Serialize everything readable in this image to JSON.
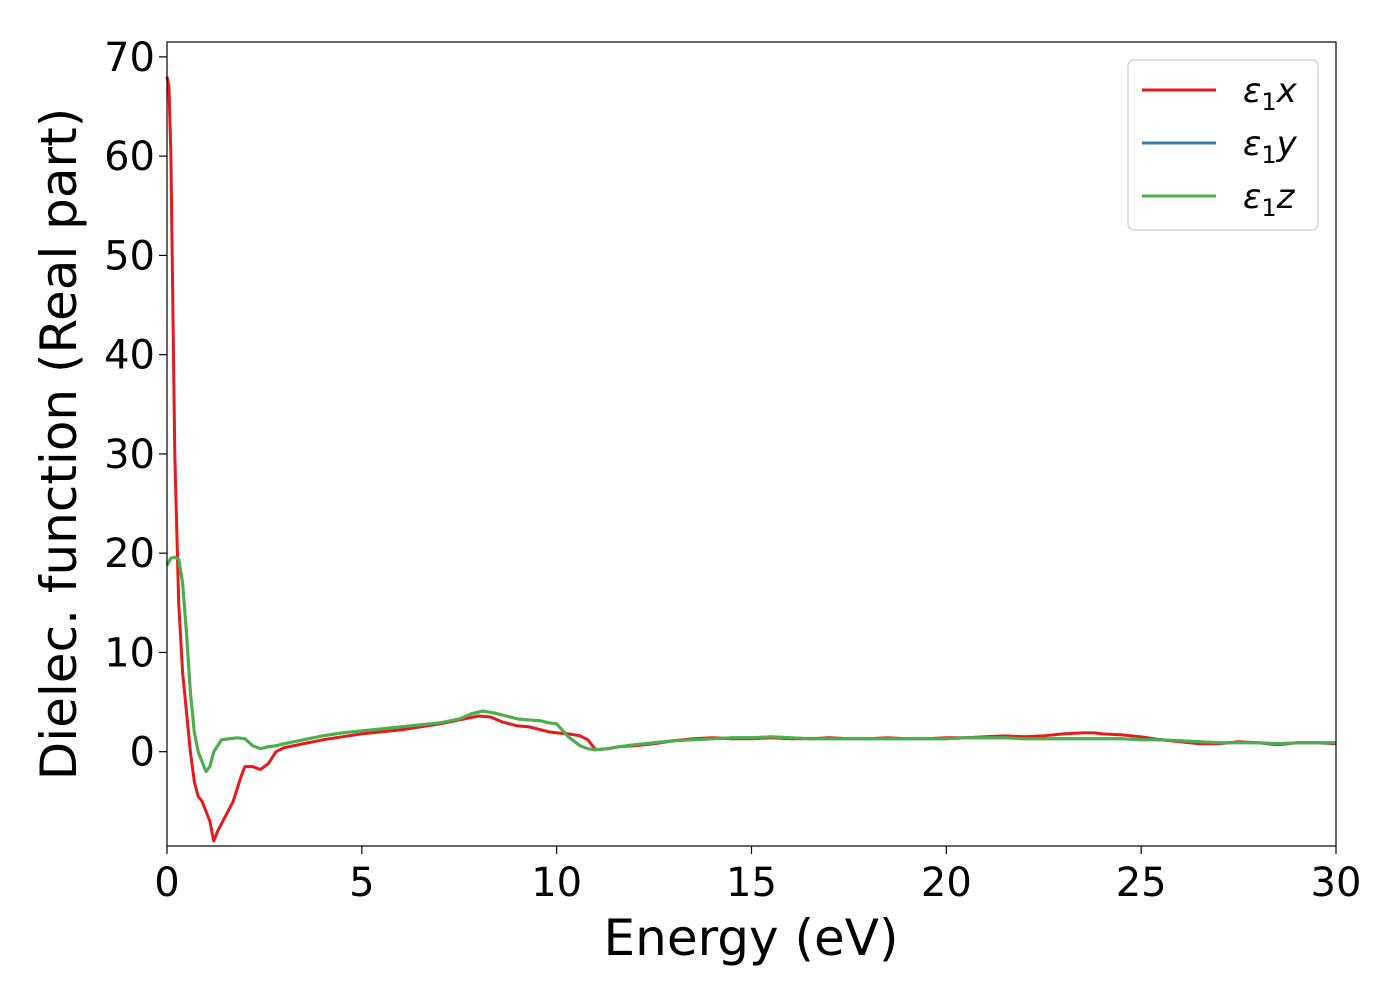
{
  "chart_data": {
    "type": "line",
    "title": "",
    "xlabel": "Energy (eV)",
    "ylabel": "Dielec. function (Real part)",
    "xlim": [
      0,
      30
    ],
    "ylim": [
      -9.5,
      71.5
    ],
    "xticks": [
      0,
      5,
      10,
      15,
      20,
      25,
      30
    ],
    "yticks": [
      0,
      10,
      20,
      30,
      40,
      50,
      60,
      70
    ],
    "grid": false,
    "legend_position": "top-right",
    "series": [
      {
        "name": "ε₁x",
        "legend_base": "ε",
        "legend_sub": "1",
        "legend_suffix": "x",
        "color": "#e41a1c",
        "x": [
          0,
          0.05,
          0.1,
          0.15,
          0.2,
          0.3,
          0.4,
          0.5,
          0.6,
          0.7,
          0.8,
          0.9,
          1.0,
          1.1,
          1.2,
          1.3,
          1.5,
          1.7,
          1.9,
          2.0,
          2.2,
          2.4,
          2.6,
          2.8,
          3.0,
          3.5,
          4.0,
          4.5,
          5.0,
          5.5,
          6.0,
          6.5,
          7.0,
          7.5,
          8.0,
          8.3,
          8.6,
          9.0,
          9.3,
          9.6,
          9.8,
          10.0,
          10.3,
          10.6,
          10.8,
          11.0,
          11.3,
          11.6,
          12.0,
          12.5,
          13.0,
          13.5,
          14.0,
          14.5,
          15.0,
          15.5,
          16.0,
          16.5,
          17.0,
          17.5,
          18.0,
          18.5,
          19.0,
          19.5,
          20.0,
          20.5,
          21.0,
          21.5,
          22.0,
          22.5,
          23.0,
          23.5,
          23.8,
          24.0,
          24.5,
          25.0,
          25.5,
          26.0,
          26.5,
          27.0,
          27.5,
          28.0,
          28.5,
          29.0,
          29.5,
          30.0
        ],
        "y": [
          68,
          67,
          60,
          45,
          30,
          15,
          8,
          4,
          0,
          -3,
          -4.5,
          -5,
          -6,
          -7,
          -9,
          -8,
          -6.5,
          -5,
          -2.5,
          -1.5,
          -1.5,
          -1.8,
          -1.2,
          0,
          0.4,
          0.8,
          1.2,
          1.5,
          1.8,
          2,
          2.2,
          2.5,
          2.8,
          3.2,
          3.6,
          3.5,
          3.0,
          2.6,
          2.5,
          2.2,
          2.0,
          1.9,
          1.8,
          1.6,
          1.2,
          0.2,
          0.3,
          0.5,
          0.6,
          0.8,
          1.1,
          1.3,
          1.4,
          1.3,
          1.3,
          1.4,
          1.3,
          1.3,
          1.4,
          1.3,
          1.3,
          1.4,
          1.3,
          1.3,
          1.4,
          1.4,
          1.5,
          1.6,
          1.5,
          1.6,
          1.8,
          1.9,
          1.9,
          1.8,
          1.7,
          1.5,
          1.2,
          1.0,
          0.8,
          0.8,
          1.0,
          0.9,
          0.7,
          0.9,
          0.9,
          0.8
        ]
      },
      {
        "name": "ε₁y",
        "legend_base": "ε",
        "legend_sub": "1",
        "legend_suffix": "y",
        "color": "#377eb8",
        "x": [
          0,
          0.1,
          0.2,
          0.3,
          0.4,
          0.5,
          0.6,
          0.7,
          0.8,
          0.9,
          1.0,
          1.1,
          1.2,
          1.4,
          1.6,
          1.8,
          2.0,
          2.2,
          2.4,
          2.6,
          2.8,
          3.0,
          3.5,
          4.0,
          4.5,
          5.0,
          5.5,
          6.0,
          6.5,
          7.0,
          7.5,
          7.8,
          8.1,
          8.4,
          8.7,
          9.0,
          9.3,
          9.6,
          9.8,
          10.0,
          10.3,
          10.6,
          10.8,
          11.0,
          11.3,
          11.6,
          12.0,
          12.5,
          13.0,
          13.5,
          14.0,
          14.5,
          15.0,
          15.5,
          16.0,
          16.5,
          17.0,
          17.5,
          18.0,
          18.5,
          19.0,
          19.5,
          20.0,
          20.5,
          21.0,
          21.5,
          22.0,
          22.5,
          23.0,
          23.5,
          24.0,
          24.5,
          25.0,
          25.5,
          26.0,
          26.5,
          27.0,
          27.5,
          28.0,
          28.5,
          29.0,
          29.5,
          30.0
        ],
        "y": [
          18.8,
          19.5,
          19.6,
          19.4,
          17,
          12,
          6,
          2,
          0,
          -1,
          -2,
          -1.5,
          0,
          1.2,
          1.3,
          1.4,
          1.3,
          0.6,
          0.3,
          0.5,
          0.6,
          0.8,
          1.2,
          1.6,
          1.9,
          2.1,
          2.3,
          2.5,
          2.7,
          2.9,
          3.3,
          3.8,
          4.1,
          3.9,
          3.6,
          3.3,
          3.2,
          3.1,
          2.9,
          2.8,
          1.5,
          0.6,
          0.3,
          0.2,
          0.3,
          0.5,
          0.7,
          0.9,
          1.1,
          1.2,
          1.3,
          1.4,
          1.4,
          1.5,
          1.4,
          1.3,
          1.3,
          1.3,
          1.3,
          1.3,
          1.3,
          1.3,
          1.3,
          1.4,
          1.4,
          1.4,
          1.3,
          1.3,
          1.3,
          1.3,
          1.3,
          1.3,
          1.2,
          1.2,
          1.1,
          1.0,
          0.9,
          0.9,
          0.9,
          0.8,
          0.9,
          0.9,
          0.9
        ]
      },
      {
        "name": "ε₁z",
        "legend_base": "ε",
        "legend_sub": "1",
        "legend_suffix": "z",
        "color": "#4daf4a",
        "x": [
          0,
          0.1,
          0.2,
          0.3,
          0.4,
          0.5,
          0.6,
          0.7,
          0.8,
          0.9,
          1.0,
          1.1,
          1.2,
          1.4,
          1.6,
          1.8,
          2.0,
          2.2,
          2.4,
          2.6,
          2.8,
          3.0,
          3.5,
          4.0,
          4.5,
          5.0,
          5.5,
          6.0,
          6.5,
          7.0,
          7.5,
          7.8,
          8.1,
          8.4,
          8.7,
          9.0,
          9.3,
          9.6,
          9.8,
          10.0,
          10.3,
          10.6,
          10.8,
          11.0,
          11.3,
          11.6,
          12.0,
          12.5,
          13.0,
          13.5,
          14.0,
          14.5,
          15.0,
          15.5,
          16.0,
          16.5,
          17.0,
          17.5,
          18.0,
          18.5,
          19.0,
          19.5,
          20.0,
          20.5,
          21.0,
          21.5,
          22.0,
          22.5,
          23.0,
          23.5,
          24.0,
          24.5,
          25.0,
          25.5,
          26.0,
          26.5,
          27.0,
          27.5,
          28.0,
          28.5,
          29.0,
          29.5,
          30.0
        ],
        "y": [
          18.8,
          19.5,
          19.6,
          19.4,
          17,
          12,
          6,
          2,
          0,
          -1,
          -2,
          -1.5,
          0,
          1.2,
          1.3,
          1.4,
          1.3,
          0.6,
          0.3,
          0.5,
          0.6,
          0.8,
          1.2,
          1.6,
          1.9,
          2.1,
          2.3,
          2.5,
          2.7,
          2.9,
          3.3,
          3.8,
          4.1,
          3.9,
          3.6,
          3.3,
          3.2,
          3.1,
          2.9,
          2.8,
          1.5,
          0.6,
          0.3,
          0.2,
          0.3,
          0.5,
          0.7,
          0.9,
          1.1,
          1.2,
          1.3,
          1.4,
          1.4,
          1.5,
          1.4,
          1.3,
          1.3,
          1.3,
          1.3,
          1.3,
          1.3,
          1.3,
          1.3,
          1.4,
          1.4,
          1.4,
          1.3,
          1.3,
          1.3,
          1.3,
          1.3,
          1.3,
          1.2,
          1.2,
          1.1,
          1.0,
          0.9,
          0.9,
          0.9,
          0.8,
          0.9,
          0.9,
          0.9
        ]
      }
    ]
  }
}
